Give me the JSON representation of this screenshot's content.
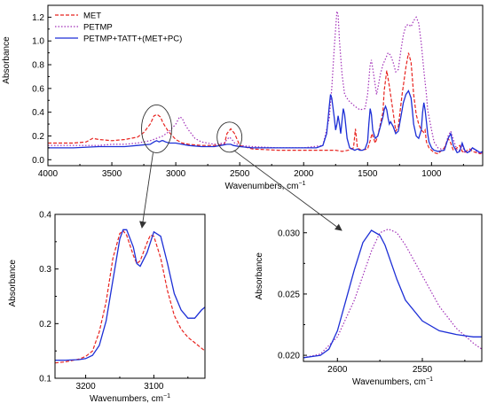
{
  "colors": {
    "MET": "#e8231f",
    "PETMP": "#a12fb8",
    "PETMP+TATT+(MET+PC)": "#1d2fd6",
    "axis": "#000000",
    "annotation": "#333333"
  },
  "chart_data": [
    {
      "id": "main",
      "type": "line",
      "xlabel": "Wavenumbers, cm",
      "xlabel_sup": "−1",
      "ylabel": "Absorbance",
      "xlim": [
        4000,
        600
      ],
      "ylim": [
        -0.05,
        1.3
      ],
      "x_ticks": [
        "4000",
        "3500",
        "3000",
        "2500",
        "2000",
        "1500",
        "1000"
      ],
      "y_ticks": [
        "0.0",
        "0.2",
        "0.4",
        "0.6",
        "0.8",
        "1.0",
        "1.2"
      ],
      "legend_position": "top-left",
      "series": [
        {
          "name": "MET",
          "style": "dashed",
          "x": [
            4000,
            3800,
            3700,
            3650,
            3600,
            3500,
            3400,
            3300,
            3250,
            3200,
            3170,
            3145,
            3120,
            3100,
            3060,
            3000,
            2950,
            2900,
            2800,
            2700,
            2620,
            2600,
            2570,
            2540,
            2500,
            2400,
            2200,
            2000,
            1800,
            1750,
            1700,
            1650,
            1610,
            1595,
            1580,
            1550,
            1500,
            1480,
            1465,
            1440,
            1420,
            1400,
            1380,
            1370,
            1350,
            1330,
            1300,
            1280,
            1260,
            1230,
            1200,
            1180,
            1160,
            1140,
            1120,
            1100,
            1080,
            1060,
            1050,
            1040,
            1020,
            1000,
            980,
            950,
            900,
            870,
            850,
            830,
            800,
            780,
            760,
            740,
            720,
            700,
            680,
            650,
            620,
            600
          ],
          "y": [
            0.14,
            0.14,
            0.15,
            0.18,
            0.17,
            0.16,
            0.17,
            0.19,
            0.23,
            0.3,
            0.37,
            0.38,
            0.36,
            0.31,
            0.24,
            0.17,
            0.14,
            0.13,
            0.12,
            0.12,
            0.13,
            0.22,
            0.26,
            0.22,
            0.12,
            0.09,
            0.08,
            0.08,
            0.08,
            0.08,
            0.07,
            0.08,
            0.1,
            0.26,
            0.1,
            0.08,
            0.09,
            0.16,
            0.22,
            0.14,
            0.2,
            0.3,
            0.4,
            0.58,
            0.75,
            0.62,
            0.4,
            0.24,
            0.28,
            0.55,
            0.78,
            0.9,
            0.82,
            0.55,
            0.38,
            0.3,
            0.25,
            0.23,
            0.25,
            0.15,
            0.1,
            0.08,
            0.06,
            0.05,
            0.1,
            0.18,
            0.14,
            0.08,
            0.1,
            0.12,
            0.07,
            0.06,
            0.08,
            0.09,
            0.07,
            0.06,
            0.05,
            0.06
          ]
        },
        {
          "name": "PETMP",
          "style": "dotted",
          "x": [
            4000,
            3800,
            3700,
            3600,
            3500,
            3400,
            3300,
            3200,
            3100,
            3050,
            3000,
            2970,
            2950,
            2930,
            2900,
            2850,
            2800,
            2700,
            2620,
            2600,
            2580,
            2560,
            2540,
            2500,
            2400,
            2200,
            2000,
            1850,
            1800,
            1780,
            1760,
            1740,
            1730,
            1720,
            1700,
            1680,
            1650,
            1600,
            1560,
            1520,
            1500,
            1480,
            1470,
            1450,
            1430,
            1420,
            1400,
            1380,
            1360,
            1340,
            1320,
            1300,
            1280,
            1260,
            1240,
            1220,
            1200,
            1180,
            1160,
            1140,
            1120,
            1100,
            1080,
            1060,
            1040,
            1030,
            1000,
            980,
            950,
            900,
            870,
            850,
            820,
            800,
            780,
            760,
            740,
            720,
            700,
            680,
            650,
            620,
            600
          ],
          "y": [
            0.12,
            0.12,
            0.12,
            0.12,
            0.13,
            0.13,
            0.14,
            0.16,
            0.2,
            0.24,
            0.3,
            0.36,
            0.35,
            0.3,
            0.25,
            0.18,
            0.15,
            0.13,
            0.14,
            0.17,
            0.19,
            0.17,
            0.14,
            0.12,
            0.11,
            0.1,
            0.1,
            0.12,
            0.35,
            0.6,
            0.95,
            1.25,
            1.22,
            1.0,
            0.72,
            0.55,
            0.5,
            0.45,
            0.42,
            0.43,
            0.55,
            0.8,
            0.84,
            0.7,
            0.55,
            0.6,
            0.72,
            0.8,
            0.85,
            0.9,
            0.88,
            0.82,
            0.74,
            0.76,
            0.92,
            1.05,
            1.13,
            1.14,
            1.12,
            1.17,
            1.2,
            1.15,
            0.98,
            0.75,
            0.55,
            0.42,
            0.25,
            0.15,
            0.1,
            0.08,
            0.2,
            0.24,
            0.14,
            0.08,
            0.08,
            0.12,
            0.06,
            0.06,
            0.08,
            0.1,
            0.07,
            0.05,
            0.06
          ]
        },
        {
          "name": "PETMP+TATT+(MET+PC)",
          "style": "solid",
          "x": [
            4000,
            3800,
            3600,
            3400,
            3300,
            3200,
            3170,
            3150,
            3130,
            3110,
            3100,
            3080,
            3050,
            3000,
            2950,
            2900,
            2800,
            2700,
            2650,
            2600,
            2570,
            2550,
            2500,
            2400,
            2200,
            2000,
            1900,
            1850,
            1820,
            1800,
            1790,
            1780,
            1760,
            1750,
            1740,
            1730,
            1720,
            1710,
            1700,
            1690,
            1680,
            1660,
            1640,
            1600,
            1580,
            1560,
            1540,
            1520,
            1500,
            1490,
            1480,
            1470,
            1460,
            1440,
            1420,
            1400,
            1380,
            1370,
            1360,
            1350,
            1340,
            1330,
            1320,
            1300,
            1280,
            1260,
            1240,
            1220,
            1200,
            1180,
            1160,
            1150,
            1140,
            1120,
            1100,
            1080,
            1070,
            1060,
            1050,
            1040,
            1030,
            1020,
            1000,
            980,
            950,
            900,
            870,
            850,
            830,
            800,
            780,
            760,
            740,
            720,
            700,
            680,
            650,
            620,
            600
          ],
          "y": [
            0.1,
            0.1,
            0.11,
            0.11,
            0.12,
            0.13,
            0.15,
            0.16,
            0.15,
            0.16,
            0.16,
            0.15,
            0.14,
            0.14,
            0.13,
            0.12,
            0.11,
            0.11,
            0.12,
            0.13,
            0.13,
            0.12,
            0.11,
            0.1,
            0.1,
            0.1,
            0.1,
            0.12,
            0.22,
            0.45,
            0.55,
            0.52,
            0.35,
            0.25,
            0.3,
            0.37,
            0.3,
            0.22,
            0.33,
            0.43,
            0.38,
            0.18,
            0.1,
            0.08,
            0.09,
            0.08,
            0.08,
            0.09,
            0.15,
            0.3,
            0.43,
            0.38,
            0.25,
            0.18,
            0.2,
            0.28,
            0.36,
            0.42,
            0.45,
            0.42,
            0.35,
            0.3,
            0.32,
            0.28,
            0.22,
            0.24,
            0.36,
            0.48,
            0.55,
            0.58,
            0.52,
            0.42,
            0.3,
            0.2,
            0.18,
            0.25,
            0.4,
            0.48,
            0.42,
            0.32,
            0.22,
            0.15,
            0.1,
            0.08,
            0.07,
            0.08,
            0.18,
            0.22,
            0.12,
            0.06,
            0.07,
            0.14,
            0.08,
            0.06,
            0.07,
            0.1,
            0.08,
            0.06,
            0.07
          ]
        }
      ],
      "circles_around_x": [
        3150,
        2580
      ]
    },
    {
      "id": "inset-left",
      "type": "line",
      "xlabel": "Wavenumbers, cm",
      "xlabel_sup": "−1",
      "ylabel": "Absorbance",
      "xlim": [
        3245,
        3025
      ],
      "ylim": [
        0.1,
        0.4
      ],
      "x_ticks": [
        "3200",
        "3100"
      ],
      "y_ticks": [
        "0.1",
        "0.2",
        "0.3",
        "0.4"
      ],
      "series": [
        {
          "name": "MET",
          "style": "dashed",
          "x": [
            3245,
            3230,
            3210,
            3200,
            3190,
            3180,
            3170,
            3160,
            3150,
            3145,
            3140,
            3130,
            3125,
            3120,
            3110,
            3105,
            3100,
            3090,
            3080,
            3070,
            3060,
            3050,
            3040,
            3025
          ],
          "y": [
            0.128,
            0.13,
            0.135,
            0.14,
            0.15,
            0.185,
            0.24,
            0.32,
            0.365,
            0.37,
            0.362,
            0.325,
            0.31,
            0.315,
            0.348,
            0.362,
            0.36,
            0.32,
            0.26,
            0.215,
            0.19,
            0.175,
            0.165,
            0.15
          ]
        },
        {
          "name": "PETMP+TATT+(MET+PC)",
          "style": "solid",
          "x": [
            3245,
            3230,
            3210,
            3200,
            3190,
            3180,
            3170,
            3160,
            3150,
            3145,
            3140,
            3130,
            3125,
            3120,
            3110,
            3100,
            3090,
            3080,
            3070,
            3060,
            3050,
            3040,
            3030,
            3025
          ],
          "y": [
            0.133,
            0.133,
            0.134,
            0.136,
            0.142,
            0.16,
            0.205,
            0.28,
            0.355,
            0.372,
            0.372,
            0.34,
            0.31,
            0.305,
            0.33,
            0.368,
            0.36,
            0.31,
            0.255,
            0.225,
            0.21,
            0.21,
            0.225,
            0.23
          ]
        }
      ]
    },
    {
      "id": "inset-right",
      "type": "line",
      "xlabel": "Wavenumbers, cm",
      "xlabel_sup": "−1",
      "ylabel": "Absorbance",
      "xlim": [
        2620,
        2515
      ],
      "ylim": [
        0.0195,
        0.0315
      ],
      "x_ticks": [
        "2600",
        "2550"
      ],
      "y_ticks": [
        "0.020",
        "0.025",
        "0.030"
      ],
      "series": [
        {
          "name": "PETMP",
          "style": "dotted",
          "x": [
            2620,
            2610,
            2600,
            2590,
            2580,
            2575,
            2570,
            2565,
            2560,
            2550,
            2540,
            2530,
            2520,
            2515
          ],
          "y": [
            0.0198,
            0.0201,
            0.0215,
            0.0245,
            0.0285,
            0.03,
            0.0303,
            0.03,
            0.029,
            0.0265,
            0.024,
            0.0222,
            0.021,
            0.0205
          ]
        },
        {
          "name": "PETMP+TATT+(MET+PC)",
          "style": "solid",
          "x": [
            2620,
            2610,
            2605,
            2600,
            2595,
            2590,
            2585,
            2580,
            2575,
            2572,
            2565,
            2560,
            2550,
            2540,
            2530,
            2520,
            2515
          ],
          "y": [
            0.0198,
            0.02,
            0.0205,
            0.022,
            0.0245,
            0.027,
            0.0292,
            0.0302,
            0.0298,
            0.029,
            0.0262,
            0.0245,
            0.0228,
            0.022,
            0.0217,
            0.0215,
            0.0215
          ]
        }
      ]
    }
  ]
}
